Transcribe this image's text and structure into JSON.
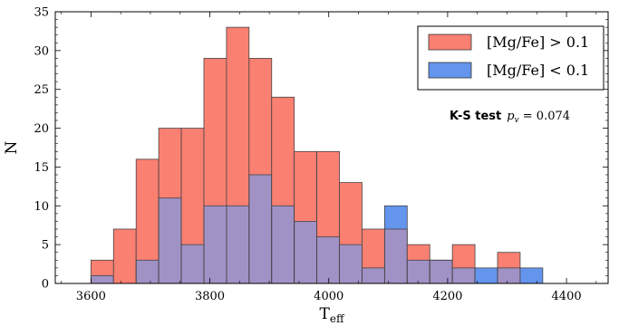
{
  "chart_data": {
    "type": "bar",
    "subtype": "overlapping-histogram",
    "title": "",
    "xlabel": "T",
    "xlabel_subscript": "eff",
    "ylabel": "N",
    "xlim": [
      3540,
      4470
    ],
    "ylim": [
      0,
      35
    ],
    "xticks": [
      3600,
      3800,
      4000,
      4200,
      4400
    ],
    "yticks": [
      0,
      5,
      10,
      15,
      20,
      25,
      30,
      35
    ],
    "x_minor_step": 50,
    "y_minor_step": 1,
    "grid": false,
    "bin_edges": [
      3600,
      3638,
      3676,
      3714,
      3752,
      3790,
      3828,
      3866,
      3904,
      3942,
      3980,
      4018,
      4056,
      4094,
      4132,
      4170,
      4208,
      4246,
      4284,
      4322,
      4360
    ],
    "series": [
      {
        "name": "[Mg/Fe] > 0.1",
        "color": "#fa8072",
        "values": [
          3,
          7,
          16,
          20,
          20,
          29,
          33,
          29,
          24,
          17,
          17,
          13,
          7,
          7,
          5,
          3,
          5,
          0,
          4,
          0
        ]
      },
      {
        "name": "[Mg/Fe] < 0.1",
        "color": "#6495ed",
        "values": [
          1,
          0,
          3,
          11,
          5,
          10,
          10,
          14,
          10,
          8,
          6,
          5,
          2,
          10,
          3,
          3,
          2,
          2,
          2,
          2
        ]
      }
    ],
    "overlap_color": "#a192c6",
    "legend": {
      "position": "top-right",
      "entries": [
        {
          "label": "[Mg/Fe] > 0.1",
          "color": "#fa8072"
        },
        {
          "label": "[Mg/Fe] < 0.1",
          "color": "#6495ed"
        }
      ]
    },
    "annotation": {
      "bold": "K-S test",
      "math_symbol": "p",
      "math_subscript": "v",
      "math_rest": " = 0.074"
    }
  }
}
